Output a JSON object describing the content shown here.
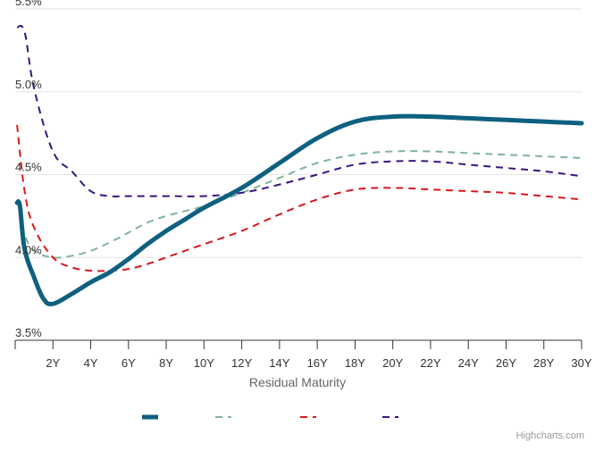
{
  "chart_data": {
    "type": "line",
    "title": "",
    "xlabel": "Residual Maturity",
    "ylabel": "",
    "x_tick_labels": [
      "2Y",
      "4Y",
      "6Y",
      "8Y",
      "10Y",
      "12Y",
      "14Y",
      "16Y",
      "18Y",
      "20Y",
      "22Y",
      "24Y",
      "26Y",
      "28Y",
      "30Y"
    ],
    "y_tick_labels": [
      "3.5%",
      "4.0%",
      "4.5%",
      "5.0%",
      "5.5%"
    ],
    "xlim": [
      0,
      30
    ],
    "ylim": [
      3.5,
      5.5
    ],
    "grid": true,
    "legend": "bottom-center",
    "series": [
      {
        "color": "#0e6080",
        "style": "solid",
        "x": [
          0.1,
          0.25,
          0.5,
          1,
          1.5,
          2,
          3,
          4,
          5,
          6,
          7,
          8,
          9,
          10,
          12,
          14,
          16,
          18,
          20,
          22,
          24,
          26,
          28,
          30
        ],
        "values": [
          4.33,
          4.31,
          4.05,
          3.88,
          3.75,
          3.72,
          3.78,
          3.85,
          3.91,
          3.99,
          4.08,
          4.16,
          4.23,
          4.3,
          4.42,
          4.57,
          4.72,
          4.82,
          4.85,
          4.85,
          4.84,
          4.83,
          4.82,
          4.81
        ]
      },
      {
        "color": "#7fb59a",
        "style": "dash",
        "x": [
          0.1,
          0.25,
          0.5,
          1,
          2,
          3,
          4,
          5,
          6,
          7,
          8,
          9,
          10,
          12,
          14,
          16,
          18,
          20,
          22,
          24,
          26,
          28,
          30
        ],
        "values": [
          4.34,
          4.3,
          4.14,
          4.04,
          4.0,
          4.01,
          4.04,
          4.09,
          4.15,
          4.21,
          4.25,
          4.28,
          4.31,
          4.39,
          4.48,
          4.57,
          4.62,
          4.64,
          4.64,
          4.63,
          4.62,
          4.61,
          4.6
        ]
      },
      {
        "color": "#d7191c",
        "style": "dash",
        "x": [
          0.1,
          0.5,
          1,
          2,
          3,
          4,
          5,
          6,
          7,
          8,
          9,
          10,
          12,
          14,
          16,
          18,
          20,
          22,
          24,
          26,
          28,
          30
        ],
        "values": [
          4.8,
          4.4,
          4.18,
          4.0,
          3.94,
          3.92,
          3.92,
          3.93,
          3.96,
          4.0,
          4.04,
          4.08,
          4.16,
          4.26,
          4.35,
          4.41,
          4.42,
          4.41,
          4.4,
          4.39,
          4.37,
          4.35
        ]
      },
      {
        "color": "#3a1480",
        "style": "dash",
        "x": [
          0.1,
          0.5,
          1,
          2,
          3,
          4,
          5,
          6,
          8,
          10,
          12,
          14,
          16,
          18,
          20,
          22,
          24,
          26,
          28,
          30
        ],
        "values": [
          5.39,
          5.36,
          5.02,
          4.64,
          4.52,
          4.4,
          4.37,
          4.37,
          4.37,
          4.37,
          4.39,
          4.44,
          4.5,
          4.56,
          4.58,
          4.58,
          4.56,
          4.54,
          4.52,
          4.49
        ]
      }
    ]
  },
  "credits": {
    "text": "Highcharts.com"
  }
}
